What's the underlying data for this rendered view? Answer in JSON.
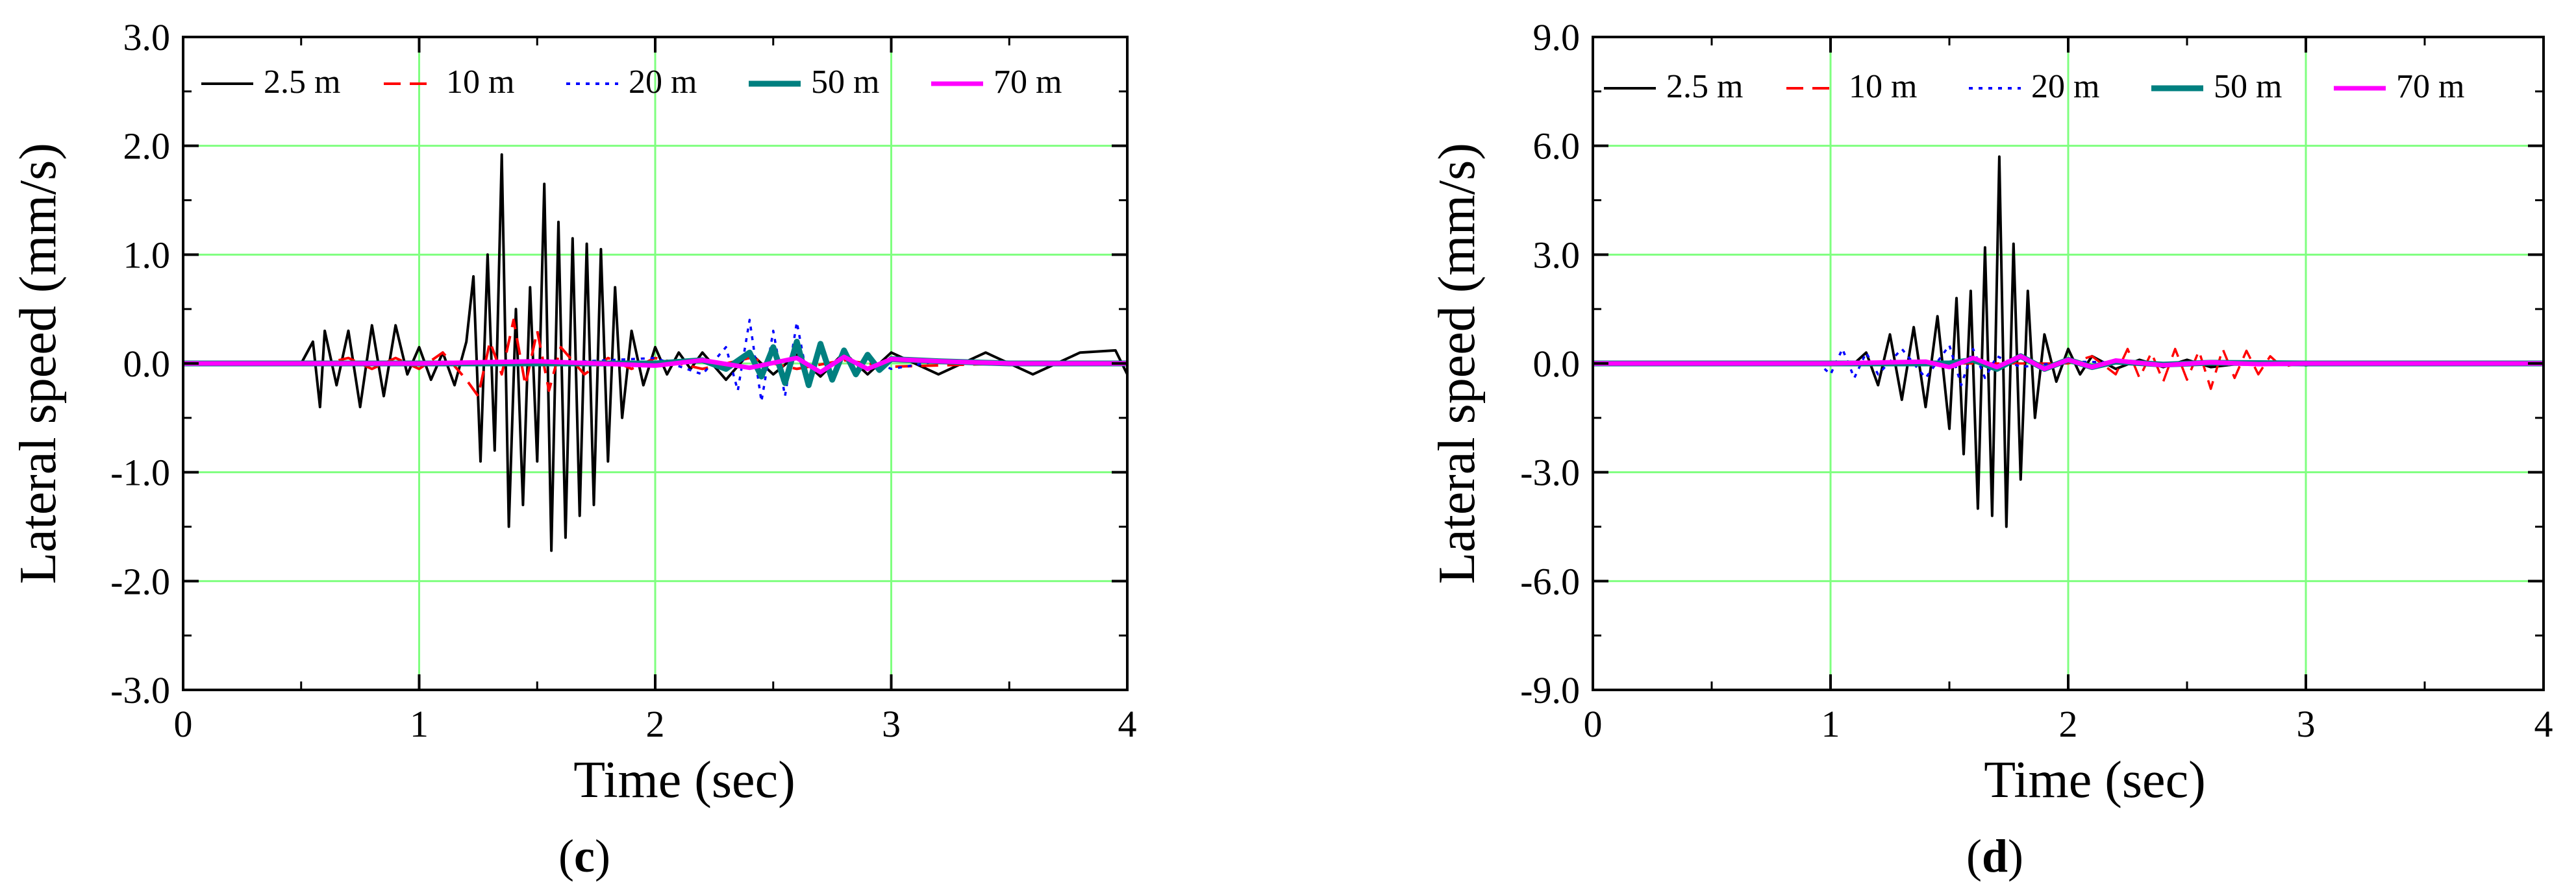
{
  "figure": {
    "panels": [
      {
        "label_open": "(",
        "label_letter": "c",
        "label_close": ")"
      },
      {
        "label_open": "(",
        "label_letter": "d",
        "label_close": ")"
      }
    ]
  },
  "colors": {
    "grid": "#7fff7f",
    "series_2_5": "#000000",
    "series_10": "#ff0000",
    "series_20": "#0000ff",
    "series_50": "#008080",
    "series_70": "#ff00ff"
  },
  "chart_data": [
    {
      "type": "line",
      "panel": "c",
      "xlabel": "Time (sec)",
      "ylabel": "Lateral speed (mm/s)",
      "xlim": [
        0,
        4
      ],
      "ylim": [
        -3.0,
        3.0
      ],
      "xticks": [
        0,
        1,
        2,
        3,
        4
      ],
      "xtick_labels": [
        "0",
        "1",
        "2",
        "3",
        "4"
      ],
      "yticks": [
        -3.0,
        -2.0,
        -1.0,
        0.0,
        1.0,
        2.0,
        3.0
      ],
      "ytick_labels": [
        "-3.0",
        "-2.0",
        "-1.0",
        "0.0",
        "1.0",
        "2.0",
        "3.0"
      ],
      "grid": true,
      "legend_position": "top",
      "series": [
        {
          "name": "2.5 m",
          "style": "solid",
          "color": "#000000",
          "x": [
            0.0,
            0.5,
            0.55,
            0.58,
            0.6,
            0.65,
            0.7,
            0.75,
            0.8,
            0.85,
            0.9,
            0.95,
            1.0,
            1.05,
            1.1,
            1.15,
            1.2,
            1.23,
            1.26,
            1.29,
            1.32,
            1.35,
            1.38,
            1.41,
            1.44,
            1.47,
            1.5,
            1.53,
            1.56,
            1.59,
            1.62,
            1.65,
            1.68,
            1.71,
            1.74,
            1.77,
            1.8,
            1.83,
            1.86,
            1.9,
            1.95,
            2.0,
            2.05,
            2.1,
            2.15,
            2.2,
            2.3,
            2.4,
            2.5,
            2.6,
            2.7,
            2.8,
            2.9,
            3.0,
            3.2,
            3.4,
            3.6,
            3.8,
            3.95,
            4.0
          ],
          "y": [
            0.0,
            0.0,
            0.2,
            -0.4,
            0.3,
            -0.2,
            0.3,
            -0.4,
            0.35,
            -0.3,
            0.35,
            -0.1,
            0.15,
            -0.15,
            0.1,
            -0.2,
            0.2,
            0.8,
            -0.9,
            1.0,
            -0.8,
            1.92,
            -1.5,
            0.5,
            -1.3,
            0.7,
            -0.9,
            1.65,
            -1.72,
            1.3,
            -1.6,
            1.15,
            -1.4,
            1.1,
            -1.3,
            1.05,
            -0.9,
            0.7,
            -0.5,
            0.3,
            -0.2,
            0.15,
            -0.1,
            0.1,
            -0.05,
            0.1,
            -0.15,
            0.1,
            -0.1,
            0.08,
            -0.12,
            0.1,
            -0.1,
            0.1,
            -0.1,
            0.1,
            -0.1,
            0.1,
            0.12,
            -0.1
          ]
        },
        {
          "name": "10 m",
          "style": "dashed",
          "color": "#ff0000",
          "x": [
            0.0,
            0.6,
            0.7,
            0.8,
            0.9,
            1.0,
            1.1,
            1.2,
            1.25,
            1.3,
            1.35,
            1.4,
            1.45,
            1.5,
            1.55,
            1.6,
            1.7,
            1.8,
            1.9,
            2.0,
            2.2,
            2.4,
            2.6,
            2.8,
            3.0,
            3.5,
            4.0
          ],
          "y": [
            0.0,
            0.0,
            0.05,
            -0.05,
            0.05,
            -0.05,
            0.1,
            -0.15,
            -0.3,
            0.2,
            -0.1,
            0.4,
            -0.2,
            0.3,
            -0.25,
            0.15,
            -0.1,
            0.05,
            -0.05,
            0.05,
            -0.05,
            0.05,
            -0.05,
            0.03,
            -0.03,
            0.0,
            0.0
          ]
        },
        {
          "name": "20 m",
          "style": "dotted",
          "color": "#0000ff",
          "x": [
            0.0,
            1.5,
            2.0,
            2.2,
            2.3,
            2.35,
            2.4,
            2.45,
            2.5,
            2.55,
            2.6,
            2.65,
            2.7,
            2.75,
            2.8,
            2.85,
            2.9,
            3.0,
            3.2,
            3.5,
            4.0
          ],
          "y": [
            0.0,
            0.0,
            0.05,
            -0.1,
            0.15,
            -0.25,
            0.4,
            -0.35,
            0.3,
            -0.3,
            0.38,
            -0.2,
            0.2,
            -0.15,
            0.1,
            -0.1,
            0.05,
            -0.05,
            0.02,
            0.0,
            0.0
          ],
          "lw": 3.5
        },
        {
          "name": "50 m",
          "style": "solid",
          "color": "#008080",
          "x": [
            0.0,
            2.0,
            2.2,
            2.3,
            2.4,
            2.45,
            2.5,
            2.55,
            2.6,
            2.65,
            2.7,
            2.75,
            2.8,
            2.85,
            2.9,
            2.95,
            3.0,
            3.2,
            3.5,
            4.0
          ],
          "y": [
            0.0,
            0.0,
            0.03,
            -0.05,
            0.1,
            -0.12,
            0.15,
            -0.18,
            0.2,
            -0.2,
            0.18,
            -0.15,
            0.12,
            -0.1,
            0.08,
            -0.06,
            0.04,
            0.02,
            0.0,
            0.0
          ],
          "lw": 9
        },
        {
          "name": "70 m",
          "style": "solid",
          "color": "#ff00ff",
          "x": [
            0.0,
            1.0,
            1.5,
            2.0,
            2.2,
            2.4,
            2.6,
            2.7,
            2.8,
            2.9,
            3.0,
            3.2,
            3.5,
            4.0
          ],
          "y": [
            0.0,
            0.0,
            0.02,
            -0.02,
            0.03,
            -0.04,
            0.05,
            -0.08,
            0.06,
            -0.05,
            0.04,
            0.02,
            0.0,
            0.0
          ],
          "lw": 7
        }
      ]
    },
    {
      "type": "line",
      "panel": "d",
      "xlabel": "Time (sec)",
      "ylabel": "Lateral speed (mm/s)",
      "xlim": [
        0,
        4
      ],
      "ylim": [
        -9.0,
        9.0
      ],
      "xticks": [
        0,
        1,
        2,
        3,
        4
      ],
      "xtick_labels": [
        "0",
        "1",
        "2",
        "3",
        "4"
      ],
      "yticks": [
        -9.0,
        -6.0,
        -3.0,
        0.0,
        3.0,
        6.0,
        9.0
      ],
      "ytick_labels": [
        "-9.0",
        "-6.0",
        "-3.0",
        "0.0",
        "3.0",
        "6.0",
        "9.0"
      ],
      "grid": true,
      "legend_position": "top",
      "series": [
        {
          "name": "2.5 m",
          "style": "solid",
          "color": "#000000",
          "x": [
            0.0,
            1.1,
            1.15,
            1.2,
            1.25,
            1.3,
            1.35,
            1.4,
            1.45,
            1.5,
            1.53,
            1.56,
            1.59,
            1.62,
            1.65,
            1.68,
            1.71,
            1.74,
            1.77,
            1.8,
            1.83,
            1.86,
            1.9,
            1.95,
            2.0,
            2.05,
            2.1,
            2.2,
            2.3,
            2.4,
            2.5,
            2.6,
            2.8,
            3.0,
            3.2,
            3.5,
            4.0
          ],
          "y": [
            0.0,
            0.0,
            0.3,
            -0.6,
            0.8,
            -1.0,
            1.0,
            -1.2,
            1.3,
            -1.8,
            1.8,
            -2.5,
            2.0,
            -4.0,
            3.2,
            -4.2,
            5.7,
            -4.5,
            3.3,
            -3.2,
            2.0,
            -1.5,
            0.8,
            -0.5,
            0.4,
            -0.3,
            0.2,
            -0.15,
            0.1,
            -0.1,
            0.1,
            -0.1,
            0.05,
            -0.05,
            0.03,
            0.0,
            0.0
          ]
        },
        {
          "name": "10 m",
          "style": "dashed",
          "color": "#ff0000",
          "x": [
            0.0,
            2.0,
            2.1,
            2.2,
            2.25,
            2.3,
            2.35,
            2.4,
            2.45,
            2.5,
            2.55,
            2.6,
            2.65,
            2.7,
            2.75,
            2.8,
            2.85,
            2.9,
            3.0,
            3.5,
            4.0
          ],
          "y": [
            0.0,
            0.0,
            0.2,
            -0.3,
            0.4,
            -0.4,
            0.3,
            -0.5,
            0.4,
            -0.45,
            0.35,
            -0.7,
            0.4,
            -0.4,
            0.35,
            -0.3,
            0.2,
            -0.1,
            0.05,
            0.0,
            0.0
          ],
          "lw": 3.5
        },
        {
          "name": "20 m",
          "style": "dotted",
          "color": "#0000ff",
          "x": [
            0.0,
            0.95,
            1.0,
            1.05,
            1.1,
            1.15,
            1.2,
            1.3,
            1.4,
            1.5,
            1.55,
            1.6,
            1.65,
            1.7,
            1.8,
            2.0,
            2.5,
            3.0,
            4.0
          ],
          "y": [
            0.0,
            0.0,
            -0.3,
            0.4,
            -0.4,
            0.3,
            -0.3,
            0.4,
            -0.4,
            0.5,
            -0.6,
            0.4,
            -0.4,
            0.2,
            -0.1,
            0.05,
            0.0,
            0.0,
            0.0
          ],
          "lw": 3.5
        },
        {
          "name": "50 m",
          "style": "solid",
          "color": "#008080",
          "x": [
            0.0,
            1.5,
            1.6,
            1.7,
            1.8,
            1.9,
            2.0,
            2.1,
            2.2,
            2.4,
            2.6,
            3.0,
            4.0
          ],
          "y": [
            0.0,
            0.0,
            0.1,
            -0.15,
            0.2,
            -0.15,
            0.1,
            -0.1,
            0.05,
            -0.03,
            0.02,
            0.0,
            0.0
          ],
          "lw": 9
        },
        {
          "name": "70 m",
          "style": "solid",
          "color": "#ff00ff",
          "x": [
            0.0,
            1.0,
            1.4,
            1.5,
            1.6,
            1.7,
            1.8,
            1.9,
            2.0,
            2.1,
            2.2,
            2.4,
            2.6,
            2.8,
            3.0,
            3.5,
            4.0
          ],
          "y": [
            0.0,
            0.0,
            0.05,
            -0.1,
            0.15,
            -0.1,
            0.2,
            -0.15,
            0.1,
            -0.1,
            0.08,
            -0.05,
            0.03,
            -0.02,
            0.0,
            0.0,
            0.0
          ],
          "lw": 7
        }
      ]
    }
  ]
}
